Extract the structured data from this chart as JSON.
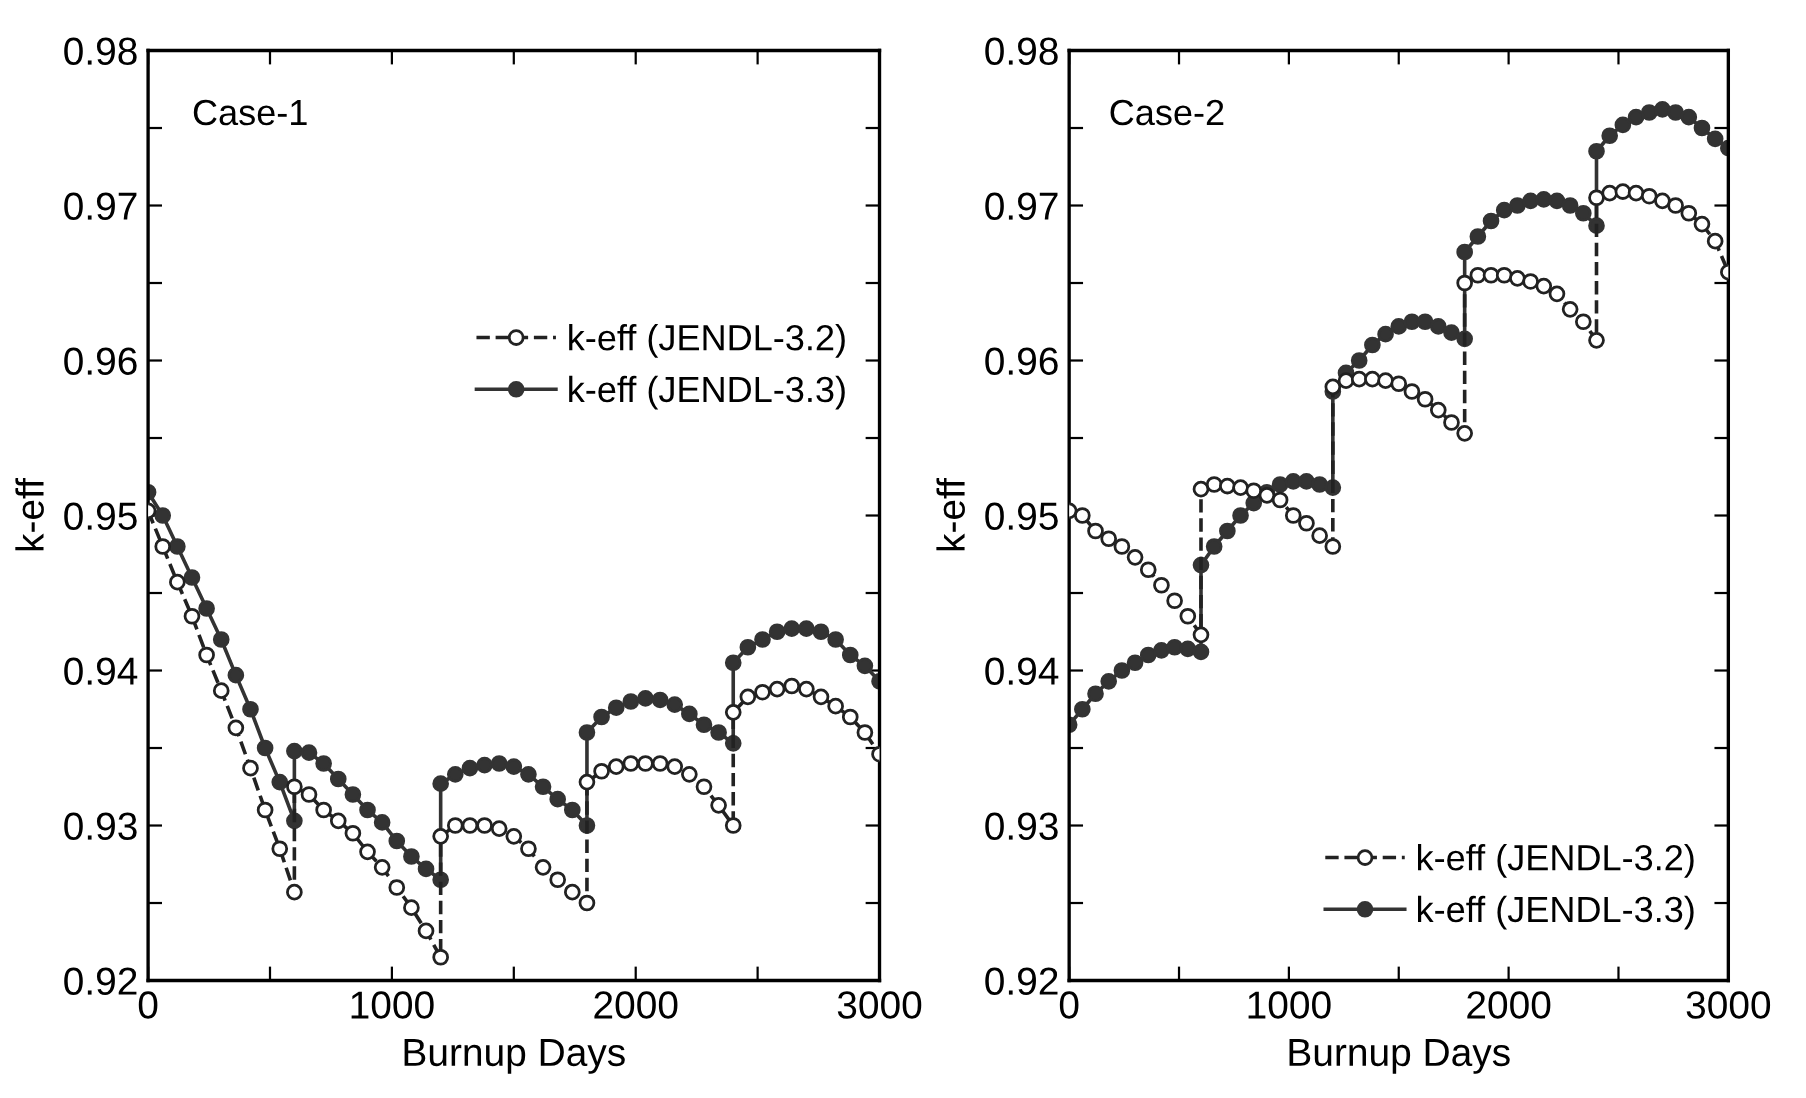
{
  "chart_data": [
    {
      "type": "line",
      "xlabel": "Burnup Days",
      "ylabel": "k-eff",
      "annotations": [
        "Case-1"
      ],
      "xlim": [
        0,
        3000
      ],
      "ylim": [
        0.92,
        0.98
      ],
      "xticks": [
        0,
        {
          "value": 500,
          "label": null
        },
        1000,
        {
          "value": 1500,
          "label": null
        },
        2000,
        {
          "value": 2500,
          "label": null
        },
        3000
      ],
      "yticks": [
        0.92,
        {
          "value": 0.925,
          "label": null
        },
        0.93,
        {
          "value": 0.935,
          "label": null
        },
        0.94,
        {
          "value": 0.945,
          "label": null
        },
        0.95,
        {
          "value": 0.955,
          "label": null
        },
        0.96,
        {
          "value": 0.965,
          "label": null
        },
        0.97,
        {
          "value": 0.975,
          "label": null
        },
        0.98
      ],
      "grid": false,
      "legend": "right",
      "marker": "circle",
      "series": [
        {
          "name": "k-eff (JENDL-3.2)",
          "color": "#222222",
          "line_style": "dashed",
          "x": [
            0,
            60,
            120,
            180,
            240,
            300,
            360,
            420,
            480,
            540,
            600,
            600,
            660,
            720,
            780,
            840,
            900,
            960,
            1020,
            1080,
            1140,
            1200,
            1200,
            1260,
            1320,
            1380,
            1440,
            1500,
            1560,
            1620,
            1680,
            1740,
            1800,
            1800,
            1860,
            1920,
            1980,
            2040,
            2100,
            2160,
            2220,
            2280,
            2340,
            2400,
            2400,
            2460,
            2520,
            2580,
            2640,
            2700,
            2760,
            2820,
            2880,
            2940,
            3000
          ],
          "values": [
            0.9503,
            0.948,
            0.9457,
            0.9435,
            0.941,
            0.9387,
            0.9363,
            0.9337,
            0.931,
            0.9285,
            0.9257,
            0.9325,
            0.932,
            0.931,
            0.9303,
            0.9295,
            0.9283,
            0.9273,
            0.926,
            0.9247,
            0.9232,
            0.9215,
            0.9293,
            0.93,
            0.93,
            0.93,
            0.9298,
            0.9293,
            0.9285,
            0.9273,
            0.9265,
            0.9257,
            0.925,
            0.9328,
            0.9335,
            0.9338,
            0.934,
            0.934,
            0.934,
            0.9338,
            0.9333,
            0.9325,
            0.9313,
            0.93,
            0.9373,
            0.9383,
            0.9386,
            0.9388,
            0.939,
            0.9388,
            0.9383,
            0.9377,
            0.937,
            0.936,
            0.9346
          ]
        },
        {
          "name": "k-eff (JENDL-3.3)",
          "color": "#333333",
          "line_style": "solid",
          "x": [
            0,
            60,
            120,
            180,
            240,
            300,
            360,
            420,
            480,
            540,
            600,
            600,
            660,
            720,
            780,
            840,
            900,
            960,
            1020,
            1080,
            1140,
            1200,
            1200,
            1260,
            1320,
            1380,
            1440,
            1500,
            1560,
            1620,
            1680,
            1740,
            1800,
            1800,
            1860,
            1920,
            1980,
            2040,
            2100,
            2160,
            2220,
            2280,
            2340,
            2400,
            2400,
            2460,
            2520,
            2580,
            2640,
            2700,
            2760,
            2820,
            2880,
            2940,
            3000
          ],
          "values": [
            0.9515,
            0.95,
            0.948,
            0.946,
            0.944,
            0.942,
            0.9397,
            0.9375,
            0.935,
            0.9328,
            0.9303,
            0.9348,
            0.9347,
            0.934,
            0.933,
            0.932,
            0.931,
            0.9302,
            0.929,
            0.928,
            0.9272,
            0.9265,
            0.9327,
            0.9333,
            0.9337,
            0.9339,
            0.934,
            0.9338,
            0.9333,
            0.9325,
            0.9317,
            0.931,
            0.93,
            0.936,
            0.937,
            0.9376,
            0.938,
            0.9382,
            0.9381,
            0.9378,
            0.9372,
            0.9365,
            0.936,
            0.9353,
            0.9405,
            0.9415,
            0.942,
            0.9425,
            0.9427,
            0.9427,
            0.9425,
            0.942,
            0.941,
            0.9403,
            0.9393
          ]
        }
      ]
    },
    {
      "type": "line",
      "xlabel": "Burnup Days",
      "ylabel": "k-eff",
      "annotations": [
        "Case-2"
      ],
      "xlim": [
        0,
        3000
      ],
      "ylim": [
        0.92,
        0.98
      ],
      "xticks": [
        0,
        {
          "value": 500,
          "label": null
        },
        1000,
        {
          "value": 1500,
          "label": null
        },
        2000,
        {
          "value": 2500,
          "label": null
        },
        3000
      ],
      "yticks": [
        0.92,
        {
          "value": 0.925,
          "label": null
        },
        0.93,
        {
          "value": 0.935,
          "label": null
        },
        0.94,
        {
          "value": 0.945,
          "label": null
        },
        0.95,
        {
          "value": 0.955,
          "label": null
        },
        0.96,
        {
          "value": 0.965,
          "label": null
        },
        0.97,
        {
          "value": 0.975,
          "label": null
        },
        0.98
      ],
      "grid": false,
      "legend": "bottom right",
      "marker": "circle",
      "series": [
        {
          "name": "k-eff (JENDL-3.2)",
          "color": "#222222",
          "line_style": "dashed",
          "x": [
            0,
            60,
            120,
            180,
            240,
            300,
            360,
            420,
            480,
            540,
            600,
            600,
            660,
            720,
            780,
            840,
            900,
            960,
            1020,
            1080,
            1140,
            1200,
            1200,
            1260,
            1320,
            1380,
            1440,
            1500,
            1560,
            1620,
            1680,
            1740,
            1800,
            1800,
            1860,
            1920,
            1980,
            2040,
            2100,
            2160,
            2220,
            2280,
            2340,
            2400,
            2400,
            2460,
            2520,
            2580,
            2640,
            2700,
            2760,
            2820,
            2880,
            2940,
            3000
          ],
          "values": [
            0.9503,
            0.95,
            0.949,
            0.9485,
            0.948,
            0.9473,
            0.9465,
            0.9455,
            0.9445,
            0.9435,
            0.9423,
            0.9517,
            0.952,
            0.9519,
            0.9518,
            0.9516,
            0.9513,
            0.951,
            0.95,
            0.9495,
            0.9487,
            0.948,
            0.9583,
            0.9587,
            0.9588,
            0.9588,
            0.9587,
            0.9585,
            0.958,
            0.9575,
            0.9568,
            0.956,
            0.9553,
            0.965,
            0.9655,
            0.9655,
            0.9655,
            0.9653,
            0.9651,
            0.9648,
            0.9643,
            0.9633,
            0.9625,
            0.9613,
            0.9705,
            0.9708,
            0.9709,
            0.9708,
            0.9706,
            0.9703,
            0.97,
            0.9695,
            0.9688,
            0.9677,
            0.9657
          ]
        },
        {
          "name": "k-eff (JENDL-3.3)",
          "color": "#333333",
          "line_style": "solid",
          "x": [
            0,
            60,
            120,
            180,
            240,
            300,
            360,
            420,
            480,
            540,
            600,
            600,
            660,
            720,
            780,
            840,
            900,
            960,
            1020,
            1080,
            1140,
            1200,
            1200,
            1260,
            1320,
            1380,
            1440,
            1500,
            1560,
            1620,
            1680,
            1740,
            1800,
            1800,
            1860,
            1920,
            1980,
            2040,
            2100,
            2160,
            2220,
            2280,
            2340,
            2400,
            2400,
            2460,
            2520,
            2580,
            2640,
            2700,
            2760,
            2820,
            2880,
            2940,
            3000
          ],
          "values": [
            0.9365,
            0.9375,
            0.9385,
            0.9393,
            0.94,
            0.9405,
            0.941,
            0.9413,
            0.9415,
            0.9414,
            0.9412,
            0.9468,
            0.948,
            0.949,
            0.95,
            0.9508,
            0.9515,
            0.952,
            0.9522,
            0.9522,
            0.952,
            0.9518,
            0.958,
            0.9592,
            0.96,
            0.961,
            0.9617,
            0.9622,
            0.9625,
            0.9625,
            0.9622,
            0.9618,
            0.9614,
            0.967,
            0.968,
            0.969,
            0.9697,
            0.97,
            0.9703,
            0.9704,
            0.9703,
            0.97,
            0.9695,
            0.9687,
            0.9735,
            0.9745,
            0.9752,
            0.9757,
            0.976,
            0.9762,
            0.976,
            0.9757,
            0.975,
            0.9743,
            0.9737
          ]
        }
      ]
    }
  ]
}
